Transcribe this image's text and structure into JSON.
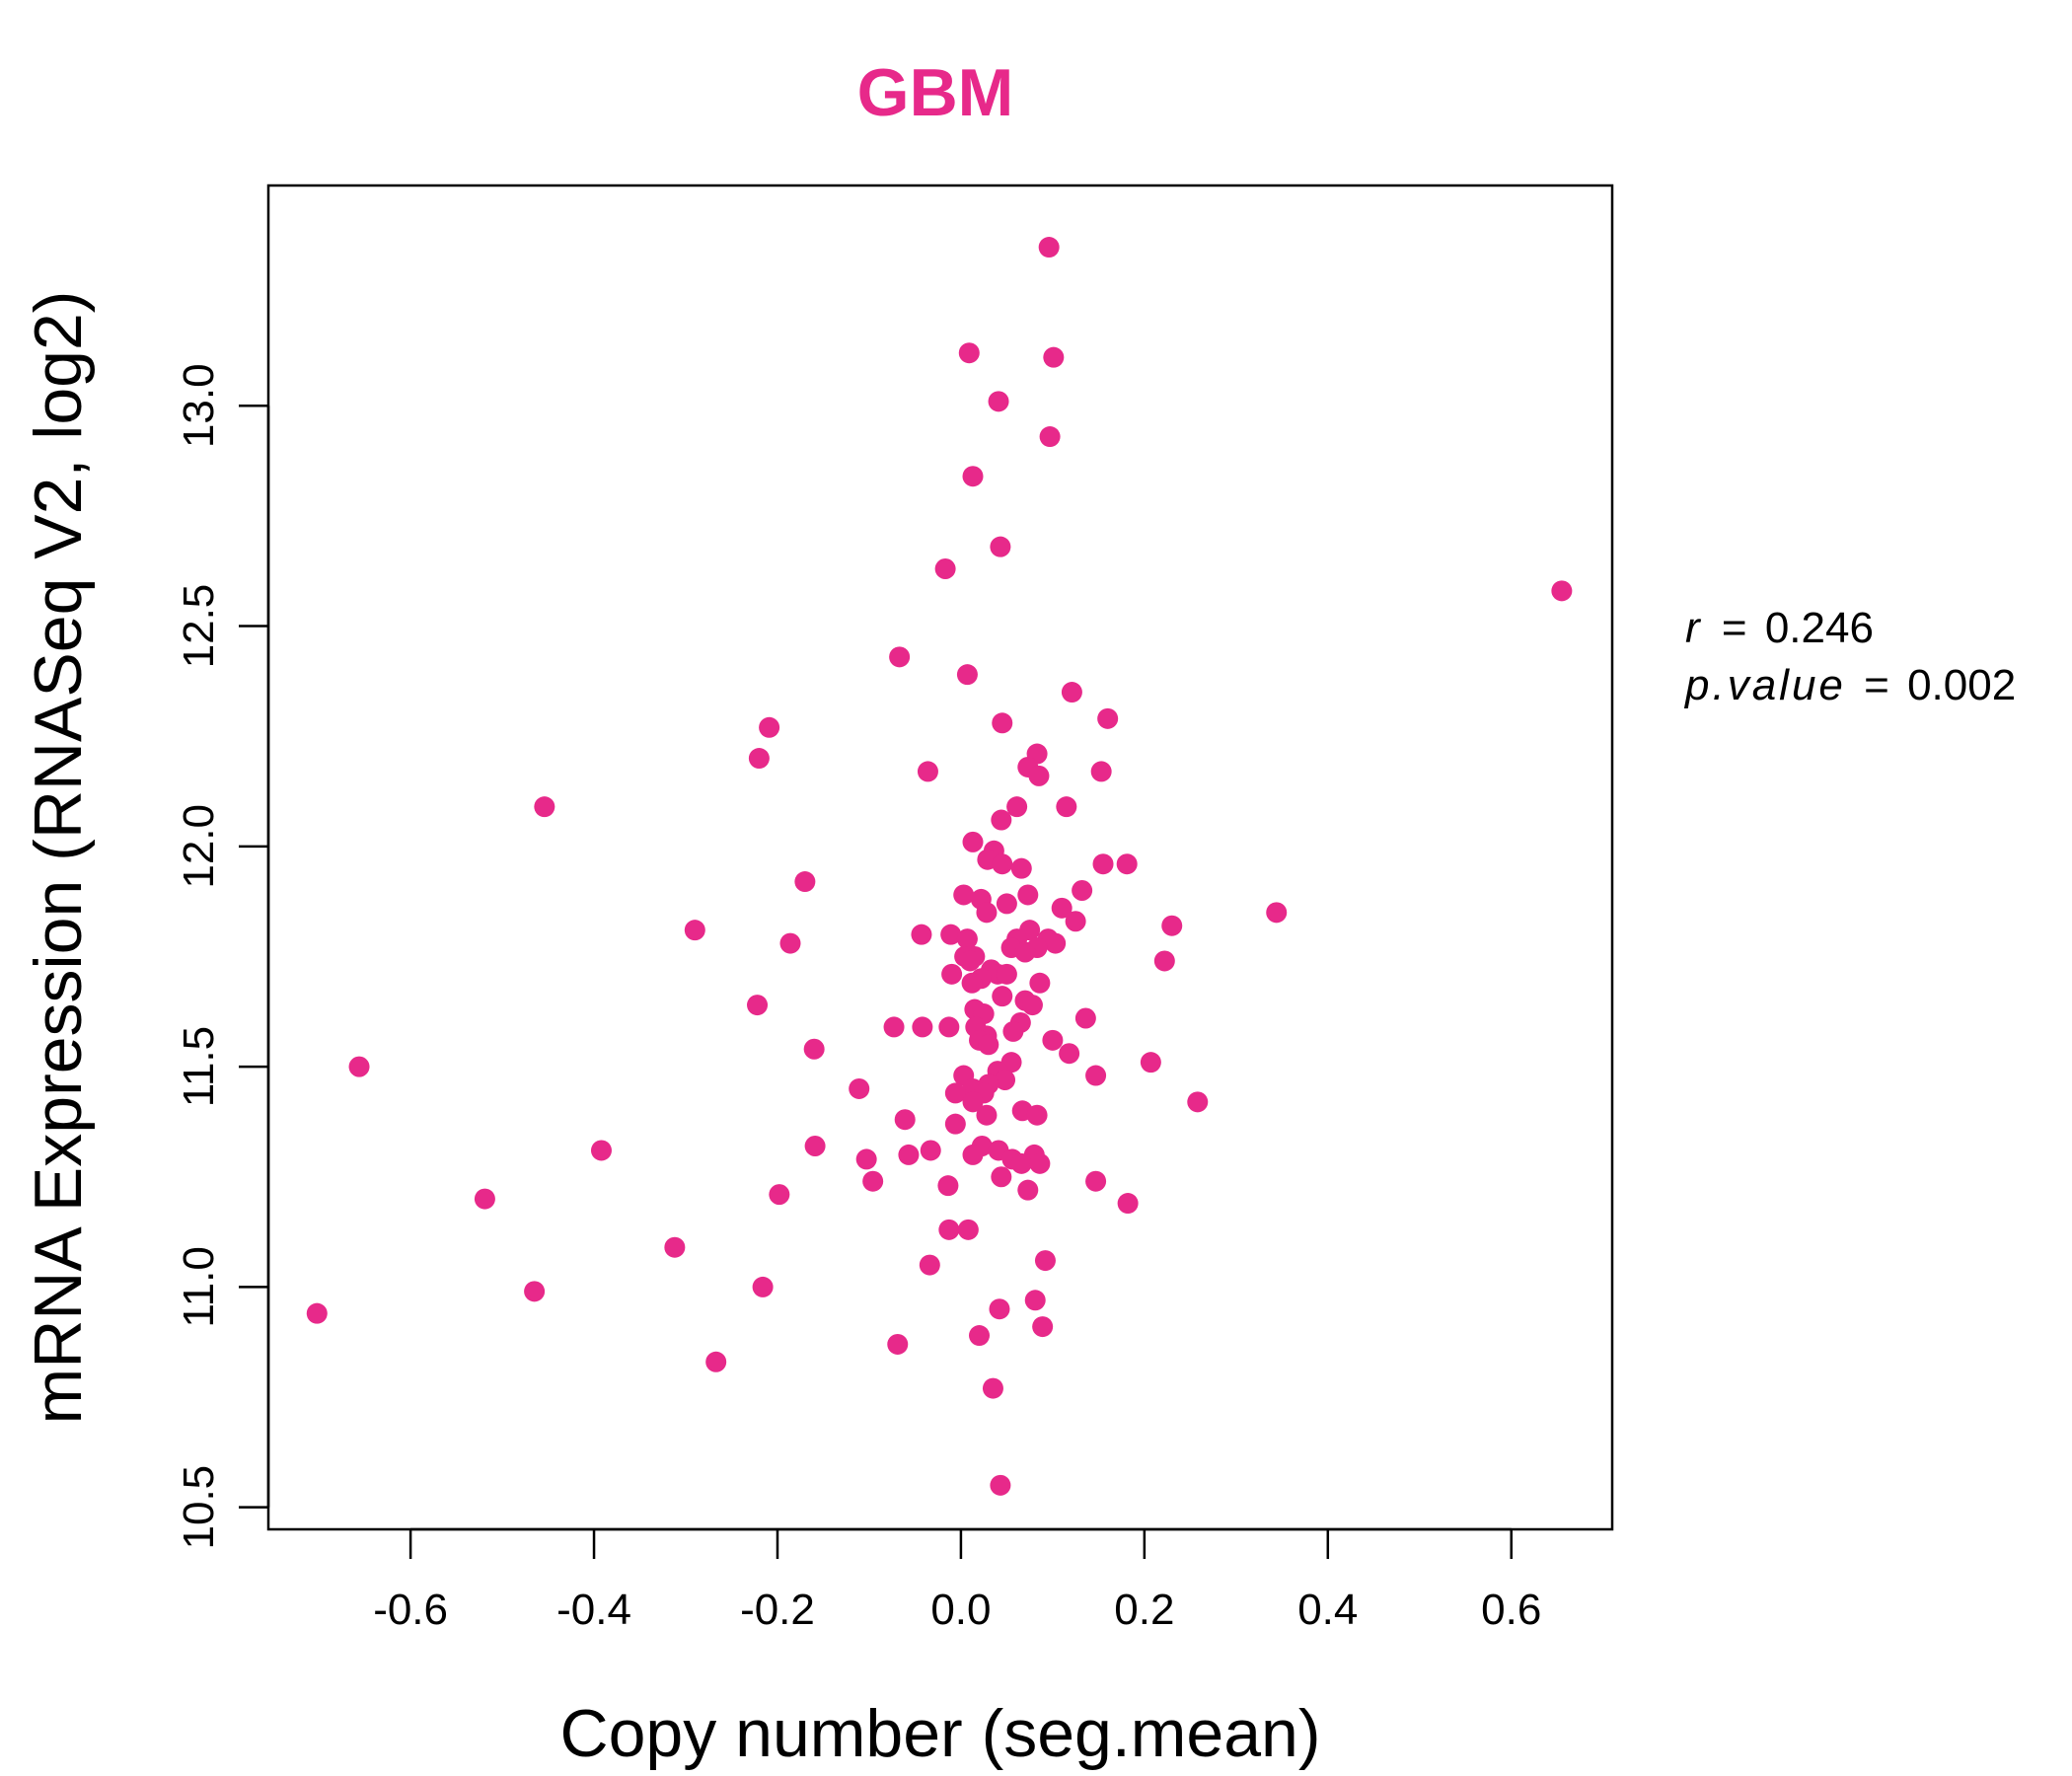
{
  "chart_data": {
    "type": "scatter",
    "title": "GBM",
    "xlabel": "Copy number (seg.mean)",
    "ylabel": "mRNA Expression (RNASeq V2, log2)",
    "xlim": [
      -0.755,
      0.71
    ],
    "ylim": [
      10.45,
      13.5
    ],
    "x_ticks": [
      -0.6,
      -0.4,
      -0.2,
      0.0,
      0.2,
      0.4,
      0.6
    ],
    "x_tick_labels": [
      "-0.6",
      "-0.4",
      "-0.2",
      "0.0",
      "0.2",
      "0.4",
      "0.6"
    ],
    "y_ticks": [
      10.5,
      11.0,
      11.5,
      12.0,
      12.5,
      13.0
    ],
    "y_tick_labels": [
      "10.5",
      "11.0",
      "11.5",
      "12.0",
      "12.5",
      "13.0"
    ],
    "grid": false,
    "point_color": "#E7298A",
    "annotation": {
      "r_label": "r",
      "r_value": "0.246",
      "p_label": "p.value",
      "p_value": "0.002",
      "equals": "="
    },
    "points": [
      [
        0.096,
        13.36
      ],
      [
        0.009,
        13.12
      ],
      [
        0.101,
        13.11
      ],
      [
        0.041,
        13.01
      ],
      [
        0.097,
        12.93
      ],
      [
        0.013,
        12.84
      ],
      [
        0.043,
        12.68
      ],
      [
        -0.017,
        12.63
      ],
      [
        0.655,
        12.58
      ],
      [
        -0.067,
        12.43
      ],
      [
        0.007,
        12.39
      ],
      [
        0.121,
        12.35
      ],
      [
        -0.209,
        12.27
      ],
      [
        0.16,
        12.29
      ],
      [
        0.045,
        12.28
      ],
      [
        -0.22,
        12.2
      ],
      [
        0.083,
        12.21
      ],
      [
        0.073,
        12.18
      ],
      [
        0.085,
        12.16
      ],
      [
        0.153,
        12.17
      ],
      [
        -0.036,
        12.17
      ],
      [
        -0.454,
        12.09
      ],
      [
        0.115,
        12.09
      ],
      [
        0.061,
        12.09
      ],
      [
        0.044,
        12.06
      ],
      [
        0.013,
        12.01
      ],
      [
        0.036,
        11.99
      ],
      [
        0.029,
        11.97
      ],
      [
        0.045,
        11.96
      ],
      [
        0.066,
        11.95
      ],
      [
        0.155,
        11.96
      ],
      [
        0.181,
        11.96
      ],
      [
        -0.17,
        11.92
      ],
      [
        0.003,
        11.89
      ],
      [
        0.132,
        11.9
      ],
      [
        0.022,
        11.88
      ],
      [
        0.073,
        11.89
      ],
      [
        0.05,
        11.87
      ],
      [
        0.11,
        11.86
      ],
      [
        0.028,
        11.85
      ],
      [
        0.344,
        11.85
      ],
      [
        0.125,
        11.83
      ],
      [
        0.23,
        11.82
      ],
      [
        -0.29,
        11.81
      ],
      [
        0.075,
        11.81
      ],
      [
        -0.043,
        11.8
      ],
      [
        -0.011,
        11.8
      ],
      [
        0.007,
        11.79
      ],
      [
        0.061,
        11.79
      ],
      [
        0.095,
        11.79
      ],
      [
        -0.186,
        11.78
      ],
      [
        0.103,
        11.78
      ],
      [
        0.055,
        11.77
      ],
      [
        0.083,
        11.77
      ],
      [
        0.07,
        11.76
      ],
      [
        0.015,
        11.75
      ],
      [
        0.004,
        11.75
      ],
      [
        0.01,
        11.74
      ],
      [
        0.222,
        11.74
      ],
      [
        0.033,
        11.72
      ],
      [
        0.04,
        11.71
      ],
      [
        -0.01,
        11.71
      ],
      [
        0.05,
        11.71
      ],
      [
        0.022,
        11.7
      ],
      [
        0.012,
        11.69
      ],
      [
        0.086,
        11.69
      ],
      [
        0.045,
        11.66
      ],
      [
        0.07,
        11.65
      ],
      [
        0.078,
        11.64
      ],
      [
        0.015,
        11.63
      ],
      [
        0.025,
        11.62
      ],
      [
        -0.222,
        11.64
      ],
      [
        0.136,
        11.61
      ],
      [
        0.065,
        11.6
      ],
      [
        -0.073,
        11.59
      ],
      [
        -0.042,
        11.59
      ],
      [
        -0.013,
        11.59
      ],
      [
        0.016,
        11.59
      ],
      [
        0.057,
        11.58
      ],
      [
        0.028,
        11.57
      ],
      [
        0.02,
        11.56
      ],
      [
        0.1,
        11.56
      ],
      [
        0.03,
        11.55
      ],
      [
        -0.16,
        11.54
      ],
      [
        0.118,
        11.53
      ],
      [
        0.207,
        11.51
      ],
      [
        0.055,
        11.51
      ],
      [
        -0.656,
        11.5
      ],
      [
        0.04,
        11.49
      ],
      [
        0.003,
        11.48
      ],
      [
        0.147,
        11.48
      ],
      [
        0.048,
        11.47
      ],
      [
        0.03,
        11.46
      ],
      [
        0.013,
        11.45
      ],
      [
        -0.111,
        11.45
      ],
      [
        0.025,
        11.44
      ],
      [
        -0.006,
        11.44
      ],
      [
        0.013,
        11.42
      ],
      [
        0.258,
        11.42
      ],
      [
        0.067,
        11.4
      ],
      [
        0.028,
        11.39
      ],
      [
        0.083,
        11.39
      ],
      [
        -0.061,
        11.38
      ],
      [
        -0.006,
        11.37
      ],
      [
        -0.159,
        11.32
      ],
      [
        0.023,
        11.32
      ],
      [
        0.041,
        11.31
      ],
      [
        -0.392,
        11.31
      ],
      [
        0.013,
        11.3
      ],
      [
        -0.057,
        11.3
      ],
      [
        -0.033,
        11.31
      ],
      [
        0.08,
        11.3
      ],
      [
        -0.103,
        11.29
      ],
      [
        0.056,
        11.29
      ],
      [
        0.066,
        11.28
      ],
      [
        0.086,
        11.28
      ],
      [
        0.044,
        11.25
      ],
      [
        -0.096,
        11.24
      ],
      [
        0.147,
        11.24
      ],
      [
        -0.014,
        11.23
      ],
      [
        0.073,
        11.22
      ],
      [
        -0.198,
        11.21
      ],
      [
        -0.519,
        11.2
      ],
      [
        0.182,
        11.19
      ],
      [
        -0.013,
        11.13
      ],
      [
        0.008,
        11.13
      ],
      [
        -0.312,
        11.09
      ],
      [
        0.092,
        11.06
      ],
      [
        -0.034,
        11.05
      ],
      [
        -0.216,
        11.0
      ],
      [
        -0.465,
        10.99
      ],
      [
        0.081,
        10.97
      ],
      [
        0.042,
        10.95
      ],
      [
        -0.702,
        10.94
      ],
      [
        0.089,
        10.91
      ],
      [
        0.02,
        10.89
      ],
      [
        -0.069,
        10.87
      ],
      [
        -0.267,
        10.83
      ],
      [
        0.035,
        10.77
      ],
      [
        0.043,
        10.55
      ]
    ]
  }
}
